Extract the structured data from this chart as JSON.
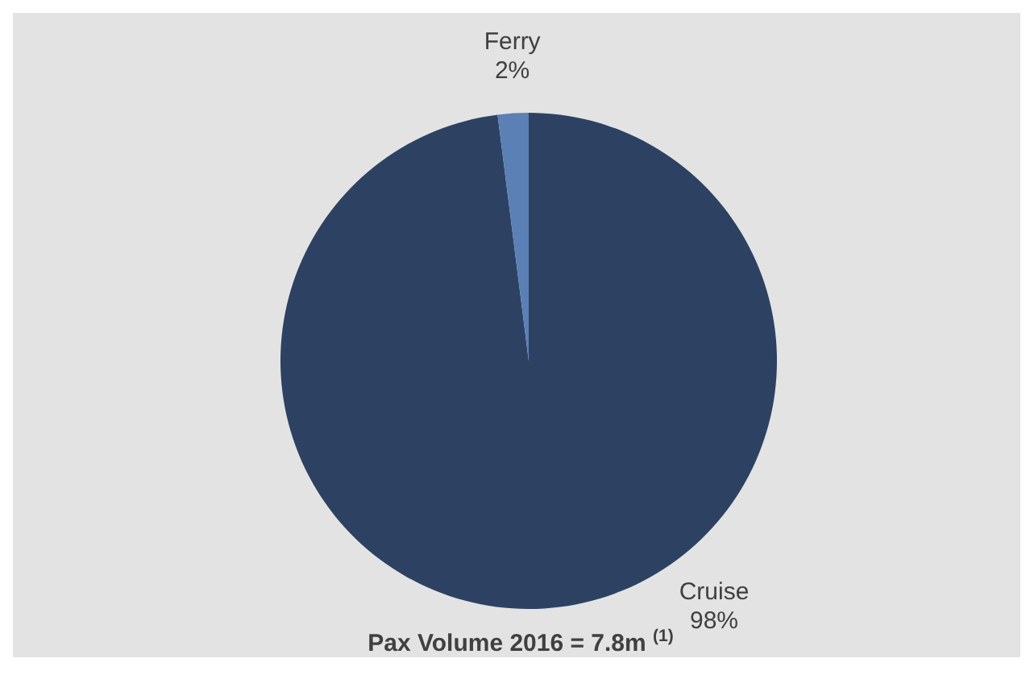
{
  "chart_data": {
    "type": "pie",
    "categories": [
      "Cruise",
      "Ferry"
    ],
    "values": [
      98,
      2
    ],
    "colors": [
      "#2d4262",
      "#5b80b5"
    ],
    "value_labels": [
      "98%",
      "2%"
    ],
    "annotations": [
      "Pax Volume 2016 = 7.8m $^{(1)}$"
    ]
  }
}
